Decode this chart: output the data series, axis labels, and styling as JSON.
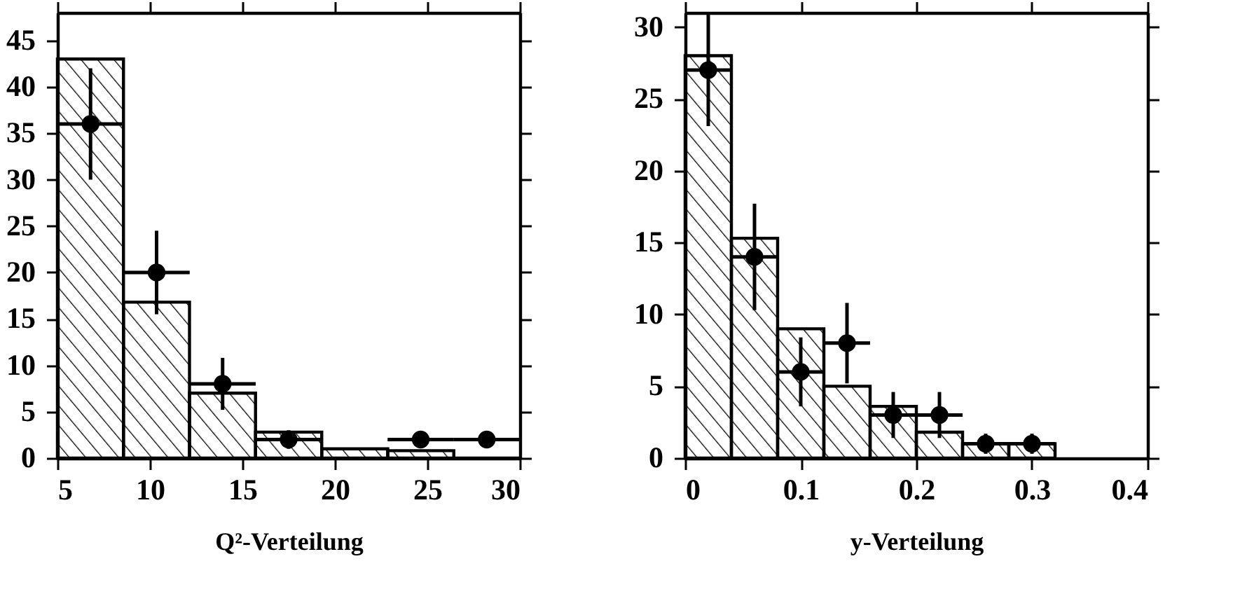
{
  "chart_data": [
    {
      "type": "histogram",
      "xlabel": "Q²-Verteilung",
      "xlim": [
        5,
        30
      ],
      "xticks": [
        5,
        10,
        15,
        20,
        25,
        30
      ],
      "ylim": [
        0,
        48
      ],
      "yticks": [
        0,
        5,
        10,
        15,
        20,
        25,
        30,
        35,
        40,
        45
      ],
      "marker": "circle",
      "series": [
        {
          "type": "histogram",
          "color": "#000000",
          "bins": [
            5,
            8.57,
            12.14,
            15.71,
            19.29,
            22.86,
            26.43,
            30
          ],
          "values": [
            43,
            16.8,
            7,
            2.8,
            1,
            0.8,
            0
          ]
        },
        {
          "type": "scatter",
          "color": "#000000",
          "x": [
            6.79,
            10.36,
            13.93,
            17.5,
            24.64,
            28.21
          ],
          "values": [
            36,
            20,
            8,
            2,
            2,
            2
          ],
          "errors": [
            6,
            4.5,
            2.8,
            1,
            0.8,
            0.8
          ],
          "xerrors": [
            1.79,
            1.79,
            1.79,
            1.79,
            1.79,
            1.79
          ]
        }
      ]
    },
    {
      "type": "histogram",
      "xlabel": "y-Verteilung",
      "xlim": [
        0,
        0.4
      ],
      "xticks": [
        0,
        0.1,
        0.2,
        0.3,
        0.4
      ],
      "ylim": [
        0,
        31
      ],
      "yticks": [
        0,
        5,
        10,
        15,
        20,
        25,
        30
      ],
      "marker": "circle",
      "series": [
        {
          "type": "histogram",
          "color": "#000000",
          "bins": [
            0,
            0.04,
            0.08,
            0.12,
            0.16,
            0.2,
            0.24,
            0.28,
            0.32
          ],
          "values": [
            28,
            15.3,
            9,
            5,
            3.6,
            1.8,
            1,
            1
          ]
        },
        {
          "type": "scatter",
          "color": "#000000",
          "x": [
            0.02,
            0.06,
            0.1,
            0.14,
            0.18,
            0.22,
            0.26,
            0.3
          ],
          "values": [
            27,
            14,
            6,
            8,
            3,
            3,
            1,
            1
          ],
          "errors": [
            3.9,
            3.7,
            2.4,
            2.8,
            1.6,
            1.6,
            0.7,
            0.7
          ],
          "xerrors": [
            0.02,
            0.02,
            0.02,
            0.02,
            0.02,
            0.02,
            0.02,
            0.02
          ]
        }
      ]
    }
  ]
}
